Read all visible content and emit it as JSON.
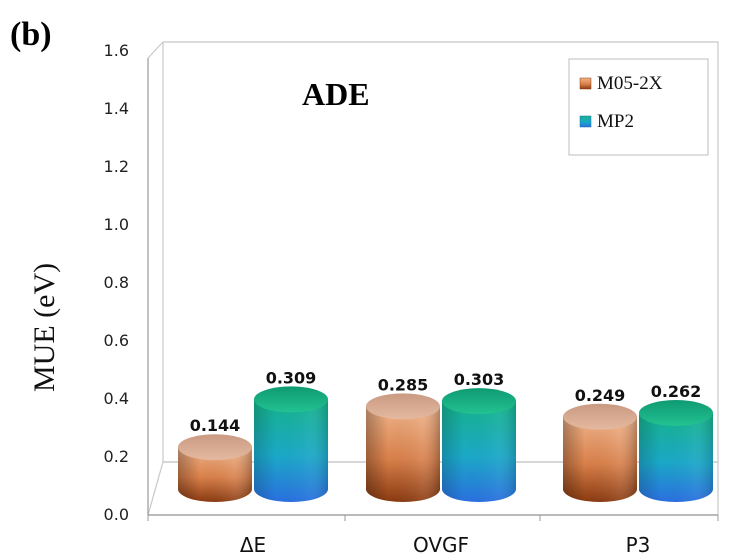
{
  "panel_label": "(b)",
  "chart_data": {
    "type": "bar",
    "title": "ADE",
    "xlabel": "",
    "ylabel": "MUE (eV)",
    "categories": [
      "ΔE",
      "OVGF",
      "P3"
    ],
    "series": [
      {
        "name": "M05-2X",
        "values": [
          0.144,
          0.285,
          0.249
        ],
        "value_labels": [
          "0.144",
          "0.285",
          "0.249"
        ]
      },
      {
        "name": "MP2",
        "values": [
          0.309,
          0.303,
          0.262
        ],
        "value_labels": [
          "0.309",
          "0.303",
          "0.262"
        ]
      }
    ],
    "ylim": [
      0,
      1.6
    ],
    "yticks": [
      "0.0",
      "0.2",
      "0.4",
      "0.6",
      "0.8",
      "1.0",
      "1.2",
      "1.4",
      "1.6"
    ],
    "legend_position": "top-right",
    "grid": false,
    "style": "3d-cylinder"
  },
  "colors": {
    "M05-2X": "#d9804a",
    "MP2": "#1ba8c8"
  }
}
